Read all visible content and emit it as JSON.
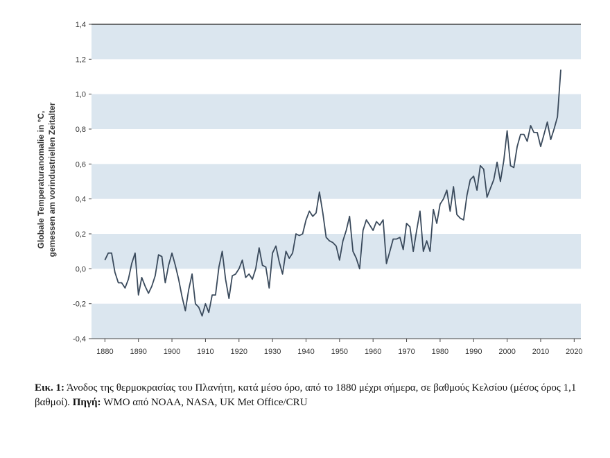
{
  "chart_data": {
    "type": "line",
    "ylabel_line1": "Globale Temperaturanomalie in °C,",
    "ylabel_line2": "gemessen am vorindustriellen Zeitalter",
    "xlabel": "",
    "xlim": [
      1876,
      2022
    ],
    "ylim": [
      -0.4,
      1.4
    ],
    "xticks": [
      1880,
      1890,
      1900,
      1910,
      1920,
      1930,
      1940,
      1950,
      1960,
      1970,
      1980,
      1990,
      2000,
      2010,
      2020
    ],
    "yticks": [
      -0.4,
      -0.2,
      0.0,
      0.2,
      0.4,
      0.6,
      0.8,
      1.0,
      1.2,
      1.4
    ],
    "ytick_labels": [
      "-0,4",
      "-0,2",
      "0,0",
      "0,2",
      "0,4",
      "0,6",
      "0,8",
      "1,0",
      "1,2",
      "1,4"
    ],
    "bands": "alternating light-blue horizontal bands every 0.2 °C",
    "band_color": "#dbe6ef",
    "line_color": "#3a4a5c",
    "series": [
      {
        "x": [
          1880,
          1881,
          1882,
          1883,
          1884,
          1885,
          1886,
          1887,
          1888,
          1889,
          1890,
          1891,
          1892,
          1893,
          1894,
          1895,
          1896,
          1897,
          1898,
          1899,
          1900,
          1901,
          1902,
          1903,
          1904,
          1905,
          1906,
          1907,
          1908,
          1909,
          1910,
          1911,
          1912,
          1913,
          1914,
          1915,
          1916,
          1917,
          1918,
          1919,
          1920,
          1921,
          1922,
          1923,
          1924,
          1925,
          1926,
          1927,
          1928,
          1929,
          1930,
          1931,
          1932,
          1933,
          1934,
          1935,
          1936,
          1937,
          1938,
          1939,
          1940,
          1941,
          1942,
          1943,
          1944,
          1945,
          1946,
          1947,
          1948,
          1949,
          1950,
          1951,
          1952,
          1953,
          1954,
          1955,
          1956,
          1957,
          1958,
          1959,
          1960,
          1961,
          1962,
          1963,
          1964,
          1965,
          1966,
          1967,
          1968,
          1969,
          1970,
          1971,
          1972,
          1973,
          1974,
          1975,
          1976,
          1977,
          1978,
          1979,
          1980,
          1981,
          1982,
          1983,
          1984,
          1985,
          1986,
          1987,
          1988,
          1989,
          1990,
          1991,
          1992,
          1993,
          1994,
          1995,
          1996,
          1997,
          1998,
          1999,
          2000,
          2001,
          2002,
          2003,
          2004,
          2005,
          2006,
          2007,
          2008,
          2009,
          2010,
          2011,
          2012,
          2013,
          2014,
          2015,
          2016
        ],
        "y": [
          0.05,
          0.09,
          0.09,
          -0.02,
          -0.08,
          -0.08,
          -0.11,
          -0.06,
          0.03,
          0.09,
          -0.15,
          -0.05,
          -0.1,
          -0.14,
          -0.1,
          -0.04,
          0.08,
          0.07,
          -0.08,
          0.02,
          0.09,
          0.02,
          -0.06,
          -0.16,
          -0.24,
          -0.12,
          -0.03,
          -0.2,
          -0.22,
          -0.27,
          -0.2,
          -0.25,
          -0.15,
          -0.15,
          0.01,
          0.1,
          -0.06,
          -0.17,
          -0.04,
          -0.03,
          0.0,
          0.05,
          -0.05,
          -0.03,
          -0.06,
          0.0,
          0.12,
          0.02,
          0.01,
          -0.11,
          0.09,
          0.13,
          0.04,
          -0.03,
          0.1,
          0.06,
          0.09,
          0.2,
          0.19,
          0.2,
          0.28,
          0.33,
          0.3,
          0.32,
          0.44,
          0.32,
          0.18,
          0.16,
          0.15,
          0.13,
          0.05,
          0.16,
          0.22,
          0.3,
          0.1,
          0.06,
          0.0,
          0.22,
          0.28,
          0.25,
          0.22,
          0.27,
          0.25,
          0.28,
          0.03,
          0.1,
          0.17,
          0.17,
          0.18,
          0.11,
          0.26,
          0.24,
          0.1,
          0.22,
          0.33,
          0.1,
          0.16,
          0.1,
          0.34,
          0.26,
          0.37,
          0.4,
          0.45,
          0.33,
          0.47,
          0.31,
          0.29,
          0.28,
          0.42,
          0.51,
          0.53,
          0.45,
          0.59,
          0.57,
          0.41,
          0.46,
          0.51,
          0.61,
          0.5,
          0.62,
          0.79,
          0.59,
          0.58,
          0.7,
          0.77,
          0.77,
          0.73,
          0.82,
          0.78,
          0.78,
          0.7,
          0.77,
          0.84,
          0.74,
          0.8,
          0.87,
          1.14
        ]
      }
    ]
  },
  "caption": {
    "label1": "Εικ. 1:",
    "text1": " Άνοδος της θερμοκρασίας του Πλανήτη, κατά μέσο όρο, από το 1880 μέχρι σήμερα, σε βαθμούς Κελσίου (μέσος όρος 1,1 βαθμοί). ",
    "label2": "Πηγή:",
    "text2": " WMO από NOAA, NASA, UK Met Office/CRU"
  }
}
